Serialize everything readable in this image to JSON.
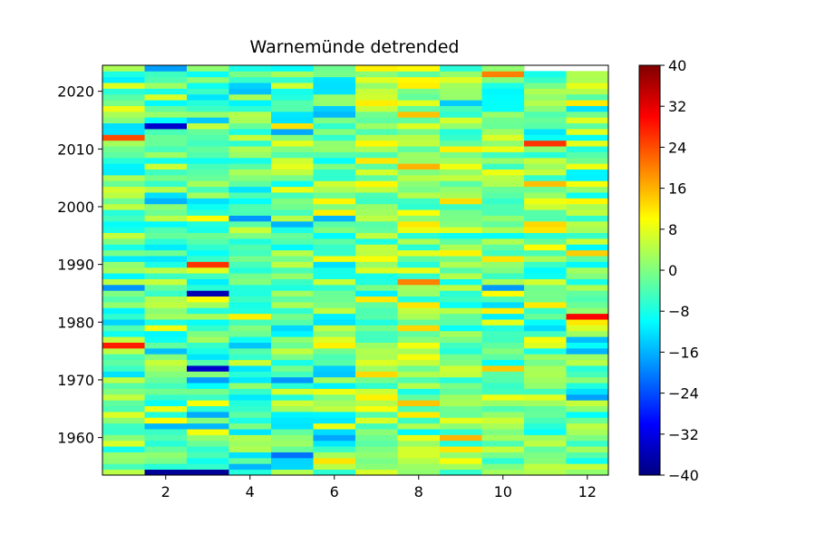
{
  "chart_data": {
    "type": "heatmap",
    "title": "Warnemünde detrended",
    "xlabel": "",
    "ylabel": "",
    "x_categories": [
      1,
      2,
      3,
      4,
      5,
      6,
      7,
      8,
      9,
      10,
      11,
      12
    ],
    "x_ticks": [
      2,
      4,
      6,
      8,
      10,
      12
    ],
    "y_years": [
      1954,
      2024
    ],
    "y_ticks": [
      1960,
      1970,
      1980,
      1990,
      2000,
      2010,
      2020
    ],
    "y_range": [
      1953.5,
      2024.5
    ],
    "colorbar": {
      "colormap": "jet",
      "range": [
        -40,
        40
      ],
      "ticks": [
        -40,
        -32,
        -24,
        -16,
        -8,
        0,
        8,
        16,
        24,
        32,
        40
      ],
      "tick_labels": [
        "−40",
        "−32",
        "−24",
        "−16",
        "−8",
        "0",
        "8",
        "16",
        "24",
        "32",
        "40"
      ]
    },
    "grid": false,
    "missing_cells": [
      [
        2024,
        11
      ],
      [
        2024,
        12
      ]
    ],
    "notable_cells": [
      {
        "year": 1954,
        "month": 2,
        "value": -38
      },
      {
        "year": 1954,
        "month": 3,
        "value": -38
      },
      {
        "year": 1985,
        "month": 3,
        "value": -36
      },
      {
        "year": 1972,
        "month": 3,
        "value": -34
      },
      {
        "year": 2014,
        "month": 2,
        "value": -34
      },
      {
        "year": 1981,
        "month": 12,
        "value": 30
      },
      {
        "year": 1976,
        "month": 1,
        "value": 28
      },
      {
        "year": 2012,
        "month": 1,
        "value": 24
      },
      {
        "year": 1990,
        "month": 3,
        "value": 26
      },
      {
        "year": 2011,
        "month": 11,
        "value": 26
      },
      {
        "year": 2023,
        "month": 10,
        "value": 20
      }
    ]
  }
}
